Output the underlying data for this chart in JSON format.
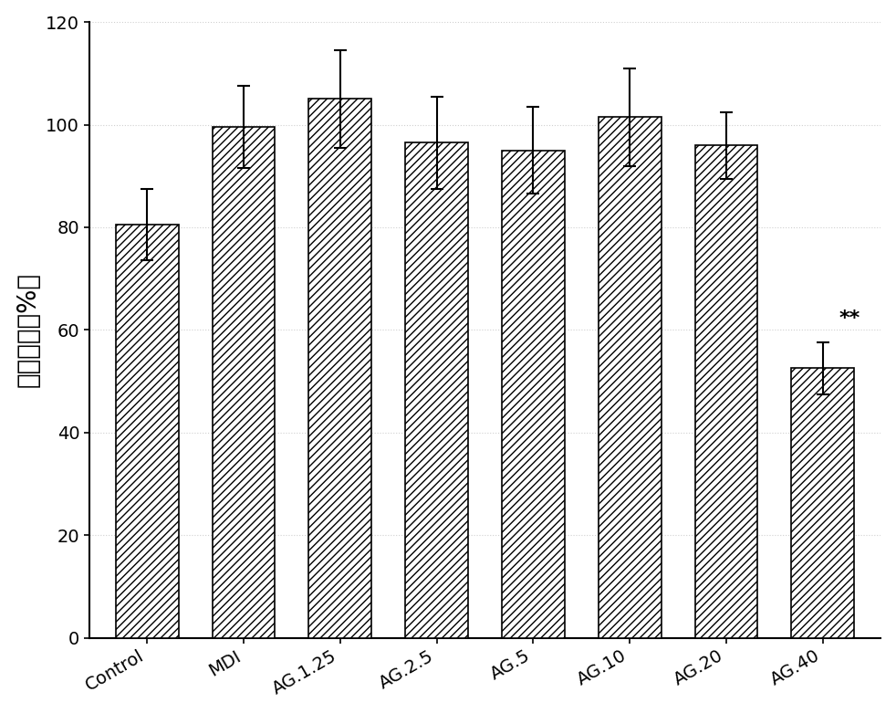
{
  "categories": [
    "Control",
    "MDI",
    "AG.1.25",
    "AG.2.5",
    "AG.5",
    "AG.10",
    "AG.20",
    "AG.40"
  ],
  "values": [
    80.5,
    99.5,
    105.0,
    96.5,
    95.0,
    101.5,
    96.0,
    52.5
  ],
  "errors": [
    7.0,
    8.0,
    9.5,
    9.0,
    8.5,
    9.5,
    6.5,
    5.0
  ],
  "ylabel": "细胞活力（%）",
  "ylim": [
    0,
    120
  ],
  "yticks": [
    0,
    20,
    40,
    60,
    80,
    100,
    120
  ],
  "bar_color": "#ffffff",
  "bar_edgecolor": "#000000",
  "hatch": "////",
  "hatch_color": "#555555",
  "error_color": "#000000",
  "annotation": "**",
  "annotation_index": 7,
  "annotation_fontsize": 16,
  "ylabel_fontsize": 20,
  "tick_fontsize": 14,
  "bar_width": 0.65,
  "background_color": "#ffffff",
  "grid_dotted": true,
  "grid_color": "#bbbbbb",
  "grid_alpha": 0.7
}
